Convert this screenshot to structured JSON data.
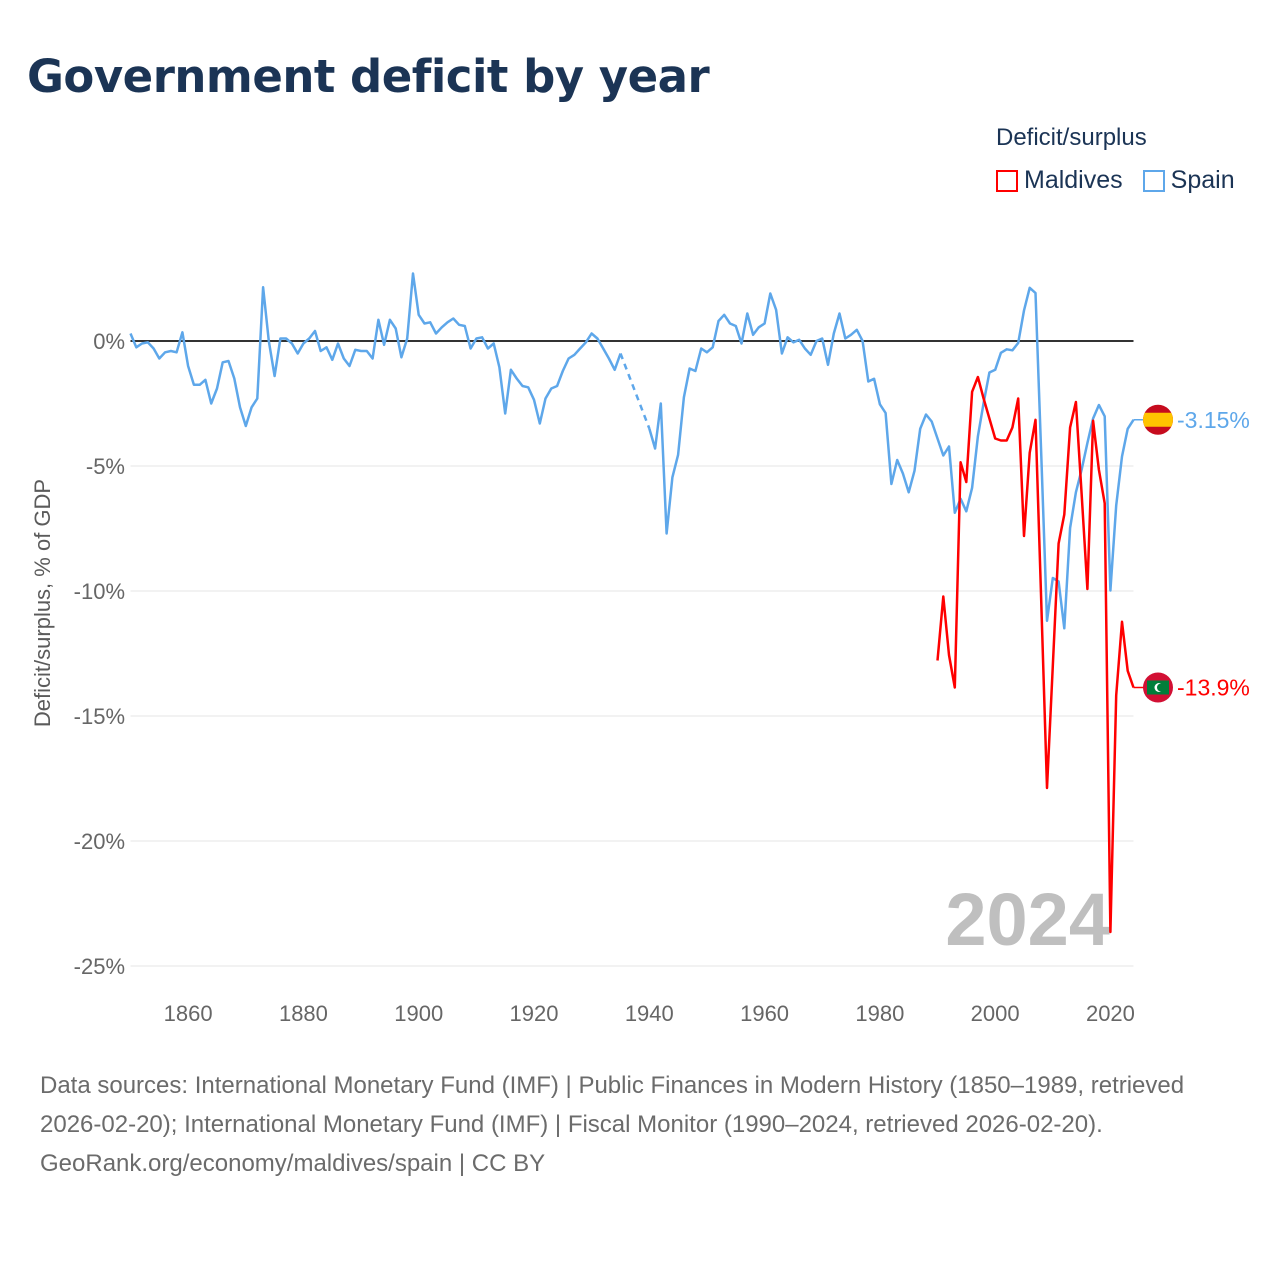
{
  "header": {
    "title": "Government deficit by year"
  },
  "legend": {
    "title": "Deficit/surplus",
    "items": [
      {
        "label": "Maldives",
        "color": "#ff0000"
      },
      {
        "label": "Spain",
        "color": "#5ea7ea"
      }
    ]
  },
  "chart_data": {
    "type": "line",
    "title": "Government deficit by year",
    "xlabel": "",
    "ylabel": "Deficit/surplus, % of GDP",
    "xlim": [
      1850,
      2024
    ],
    "ylim": [
      -25,
      3
    ],
    "x_ticks": [
      1860,
      1880,
      1900,
      1920,
      1940,
      1960,
      1980,
      2000,
      2020
    ],
    "x_tick_labels": [
      "1860",
      "1880",
      "1900",
      "1920",
      "1940",
      "1960",
      "1980",
      "2000",
      "2020"
    ],
    "y_ticks": [
      0,
      -5,
      -10,
      -15,
      -20,
      -25
    ],
    "y_tick_labels": [
      "0%",
      "-5%",
      "-10%",
      "-15%",
      "-20%",
      "-25%"
    ],
    "grid": true,
    "legend_position": "top-right",
    "current_year_label": "2024",
    "series": [
      {
        "name": "Spain",
        "color": "#5ea7ea",
        "start_year": 1850,
        "end_label": "-3.15%",
        "flag": "spain-flag",
        "values": [
          0.3,
          -0.25,
          -0.1,
          -0.05,
          -0.3,
          -0.7,
          -0.45,
          -0.4,
          -0.45,
          0.35,
          -1.0,
          -1.75,
          -1.75,
          -1.55,
          -2.5,
          -1.9,
          -0.85,
          -0.8,
          -1.5,
          -2.65,
          -3.4,
          -2.65,
          -2.3,
          2.15,
          0.0,
          -1.4,
          0.1,
          0.1,
          -0.1,
          -0.5,
          -0.1,
          0.1,
          0.4,
          -0.4,
          -0.25,
          -0.75,
          -0.1,
          -0.7,
          -1.0,
          -0.35,
          -0.4,
          -0.4,
          -0.7,
          0.85,
          -0.15,
          0.85,
          0.5,
          -0.65,
          0.1,
          2.7,
          1.05,
          0.7,
          0.75,
          0.3,
          0.55,
          0.75,
          0.9,
          0.65,
          0.6,
          -0.3,
          0.1,
          0.15,
          -0.3,
          -0.1,
          -1.05,
          -2.9,
          -1.15,
          -1.5,
          -1.8,
          -1.85,
          -2.35,
          -3.3,
          -2.3,
          -1.9,
          -1.8,
          -1.2,
          -0.7,
          -0.55,
          -0.3,
          -0.05,
          0.3,
          0.1,
          -0.3,
          -0.7,
          -1.15,
          -0.5,
          null,
          null,
          null,
          null,
          -3.5,
          -4.3,
          -2.5,
          -7.7,
          -5.45,
          -4.55,
          -2.25,
          -1.1,
          -1.2,
          -0.3,
          -0.45,
          -0.25,
          0.8,
          1.05,
          0.7,
          0.6,
          -0.1,
          1.1,
          0.25,
          0.55,
          0.7,
          1.9,
          1.25,
          -0.5,
          0.15,
          -0.05,
          0.05,
          -0.3,
          -0.55,
          0.0,
          0.1,
          -0.95,
          0.3,
          1.1,
          0.1,
          0.25,
          0.45,
          0.0,
          -1.62,
          -1.51,
          -2.53,
          -2.88,
          -5.72,
          -4.76,
          -5.3,
          -6.05,
          -5.19,
          -3.51,
          -2.94,
          -3.22,
          -3.9,
          -4.58,
          -4.22,
          -6.87,
          -6.31,
          -6.81,
          -5.87,
          -3.81,
          -2.48,
          -1.26,
          -1.15,
          -0.47,
          -0.33,
          -0.37,
          -0.08,
          1.22,
          2.13,
          1.92,
          -4.6,
          -11.19,
          -9.48,
          -9.62,
          -11.49,
          -7.48,
          -6.05,
          -5.15,
          -4.08,
          -3.1,
          -2.56,
          -3.01,
          -9.98,
          -6.58,
          -4.62,
          -3.51,
          -3.15
        ]
      },
      {
        "name": "Maldives",
        "color": "#ff0000",
        "start_year": 1990,
        "end_label": "-13.9%",
        "flag": "maldives-flag",
        "values": [
          -12.78,
          -10.22,
          -12.56,
          -13.86,
          -4.85,
          -5.64,
          -2.03,
          -1.44,
          -2.3,
          -3.1,
          -3.9,
          -3.98,
          -3.98,
          -3.46,
          -2.3,
          -7.8,
          -4.47,
          -3.15,
          -10.5,
          -17.88,
          -13.0,
          -8.1,
          -6.94,
          -3.46,
          -2.44,
          -6.1,
          -9.92,
          -3.19,
          -5.15,
          -6.49,
          -23.64,
          -14.17,
          -11.23,
          -13.19,
          -13.86
        ]
      }
    ]
  },
  "footer": {
    "sources": "Data sources: International Monetary Fund (IMF) | Public Finances in Modern History (1850–1989, retrieved 2026-02-20); International Monetary Fund (IMF) | Fiscal Monitor (1990–2024, retrieved 2026-02-20).",
    "credit": "GeoRank.org/economy/maldives/spain | CC BY"
  }
}
